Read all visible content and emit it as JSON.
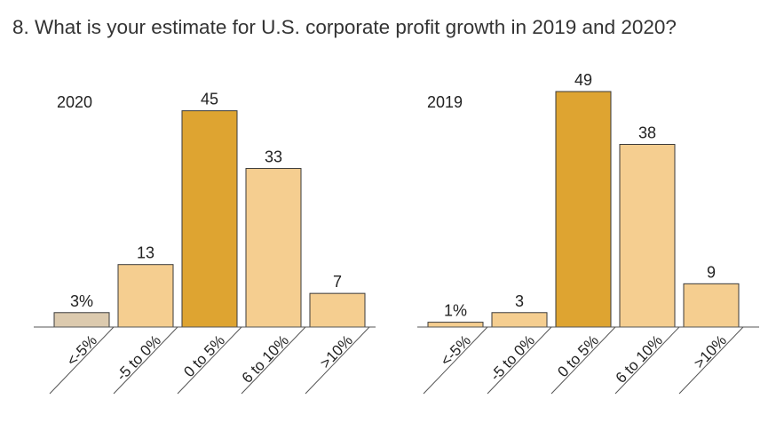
{
  "question": "8. What is your estimate for U.S. corporate profit growth in 2019 and 2020?",
  "colors": {
    "tan": "#DCCAAE",
    "light": "#F5CE90",
    "highlight": "#DEA431",
    "stroke": "#3A3A3A",
    "axis": "#555555"
  },
  "chart_data": [
    {
      "type": "bar",
      "title": "2020",
      "categories": [
        "<-5%",
        "-5 to 0%",
        "0 to 5%",
        "6 to 10%",
        ">10%"
      ],
      "values": [
        3,
        13,
        45,
        33,
        7
      ],
      "data_labels": [
        "3%",
        "13",
        "45",
        "33",
        "7"
      ],
      "bar_colors": [
        "tan",
        "light",
        "highlight",
        "light",
        "light"
      ],
      "ylim": [
        0,
        49
      ],
      "grid": false
    },
    {
      "type": "bar",
      "title": "2019",
      "categories": [
        "<-5%",
        "-5 to 0%",
        "0 to 5%",
        "6 to 10%",
        ">10%"
      ],
      "values": [
        1,
        3,
        49,
        38,
        9
      ],
      "data_labels": [
        "1%",
        "3",
        "49",
        "38",
        "9"
      ],
      "bar_colors": [
        "light",
        "light",
        "highlight",
        "light",
        "light"
      ],
      "ylim": [
        0,
        49
      ],
      "grid": false
    }
  ]
}
